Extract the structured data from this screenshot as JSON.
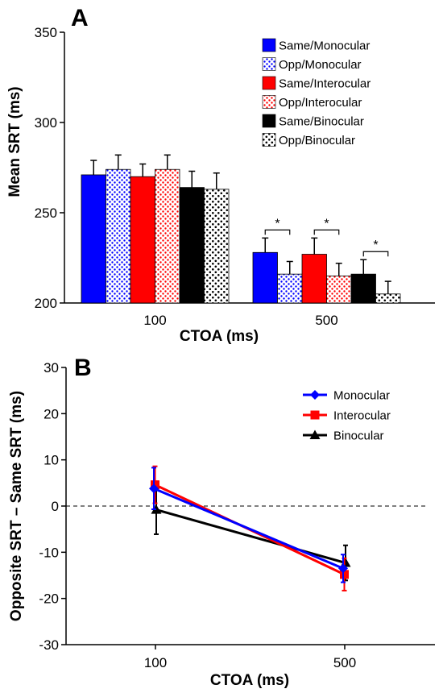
{
  "chart_data": [
    {
      "type": "bar",
      "panel_label": "A",
      "xlabel": "CTOA (ms)",
      "ylabel": "Mean SRT (ms)",
      "ylim": [
        200,
        350
      ],
      "yticks": [
        200,
        250,
        300,
        350
      ],
      "categories": [
        "100",
        "500"
      ],
      "legend_position": "top-right",
      "significance_marker": "*",
      "significant_pairs_category": "500",
      "series": [
        {
          "name": "Same/Monocular",
          "values": [
            271,
            228
          ],
          "errors": [
            8,
            8
          ],
          "color": "#0000ff",
          "pattern": "solid"
        },
        {
          "name": "Opp/Monocular",
          "values": [
            274,
            216
          ],
          "errors": [
            8,
            7
          ],
          "color": "#0000ff",
          "pattern": "dots"
        },
        {
          "name": "Same/Interocular",
          "values": [
            270,
            227
          ],
          "errors": [
            7,
            9
          ],
          "color": "#ff0000",
          "pattern": "solid"
        },
        {
          "name": "Opp/Interocular",
          "values": [
            274,
            215
          ],
          "errors": [
            8,
            7
          ],
          "color": "#ff0000",
          "pattern": "dots"
        },
        {
          "name": "Same/Binocular",
          "values": [
            264,
            216
          ],
          "errors": [
            9,
            8
          ],
          "color": "#000000",
          "pattern": "solid"
        },
        {
          "name": "Opp/Binocular",
          "values": [
            263,
            205
          ],
          "errors": [
            9,
            7
          ],
          "color": "#000000",
          "pattern": "dots"
        }
      ]
    },
    {
      "type": "line",
      "panel_label": "B",
      "xlabel": "CTOA (ms)",
      "ylabel": "Opposite SRT – Same SRT (ms)",
      "ylim": [
        -30,
        30
      ],
      "yticks": [
        -30,
        -20,
        -10,
        0,
        10,
        20,
        30
      ],
      "categories": [
        "100",
        "500"
      ],
      "reference_line": 0,
      "legend_position": "top-right",
      "series": [
        {
          "name": "Monocular",
          "values": [
            3.8,
            -13.5
          ],
          "errors": [
            4.5,
            3.0
          ],
          "color": "#0000ff",
          "marker": "diamond"
        },
        {
          "name": "Interocular",
          "values": [
            4.6,
            -14.8
          ],
          "errors": [
            4.0,
            3.5
          ],
          "color": "#ff0000",
          "marker": "square"
        },
        {
          "name": "Binocular",
          "values": [
            -0.8,
            -12.3
          ],
          "errors": [
            5.3,
            3.8
          ],
          "color": "#000000",
          "marker": "triangle"
        }
      ]
    }
  ]
}
